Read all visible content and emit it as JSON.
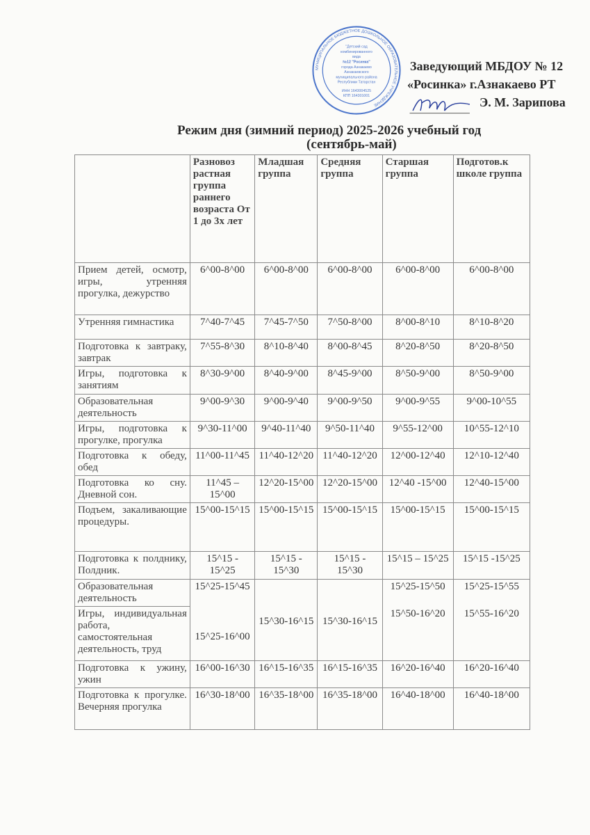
{
  "approval": {
    "line1": "Заведующий МБДОУ № 12",
    "line2": "«Росинка»  г.Азнакаево РТ",
    "line3": "Э. М. Зарипова"
  },
  "stamp": {
    "outer_text": "МУНИЦИПАЛЬНОЕ БЮДЖЕТНОЕ ДОШКОЛЬНОЕ ОБРАЗОВАТЕЛЬНОЕ УЧРЕЖДЕНИЕ",
    "inner_lines": [
      "\"Детский сад",
      "комбинированного",
      "вида",
      "№12 \"Росинка\"",
      "города Азнакаево",
      "Азнакаевского",
      "муниципального района",
      "Республики Татарстан",
      "ИНН 1643004525",
      "КПП 164301001"
    ],
    "color": "#2f5fc4"
  },
  "title": {
    "line1": "Режим дня (зимний период) 2025-2026 учебный год",
    "line2": "(сентябрь-май)"
  },
  "table": {
    "headers": [
      "",
      "Разновоз растная группа раннего возраста От 1 до 3х лет",
      "Младшая группа",
      "Средняя группа",
      "Старшая группа",
      "Подготов.к школе группа"
    ],
    "rows": [
      {
        "label": "Прием детей, осмотр, игры, утренняя прогулка, дежурство",
        "values": [
          "6^00-8^00",
          "6^00-8^00",
          "6^00-8^00",
          "6^00-8^00",
          "6^00-8^00"
        ]
      },
      {
        "label": "Утренняя гимнастика",
        "values": [
          "7^40-7^45",
          "7^45-7^50",
          "7^50-8^00",
          "8^00-8^10",
          "8^10-8^20"
        ]
      },
      {
        "label": "Подготовка к завтраку, завтрак",
        "values": [
          "7^55-8^30",
          "8^10-8^40",
          "8^00-8^45",
          "8^20-8^50",
          "8^20-8^50"
        ]
      },
      {
        "label": "Игры, подготовка к занятиям",
        "values": [
          "8^30-9^00",
          "8^40-9^00",
          "8^45-9^00",
          "8^50-9^00",
          "8^50-9^00"
        ]
      },
      {
        "label": "Образовательная деятельность",
        "values": [
          "9^00-9^30",
          "9^00-9^40",
          "9^00-9^50",
          "9^00-9^55",
          "9^00-10^55"
        ]
      },
      {
        "label": "Игры, подготовка к прогулке, прогулка",
        "values": [
          "9^30-11^00",
          "9^40-11^40",
          "9^50-11^40",
          "9^55-12^00",
          "10^55-12^10"
        ]
      },
      {
        "label": "Подготовка к обеду, обед",
        "values": [
          "11^00-11^45",
          "11^40-12^20",
          "11^40-12^20",
          "12^00-12^40",
          "12^10-12^40"
        ]
      },
      {
        "label": "Подготовка ко сну. Дневной сон.",
        "values": [
          "11^45 – 15^00",
          "12^20-15^00",
          "12^20-15^00",
          "12^40 -15^00",
          "12^40-15^00"
        ]
      },
      {
        "label": "Подъем, закаливающие процедуры.",
        "values": [
          "15^00-15^15",
          "15^00-15^15",
          "15^00-15^15",
          "15^00-15^15",
          "15^00-15^15"
        ]
      },
      {
        "label": "Подготовка к полднику, Полдник.",
        "values": [
          "15^15 - 15^25",
          "15^15 - 15^30",
          "15^15 - 15^30",
          "15^15 – 15^25",
          "15^15 -15^25"
        ]
      }
    ],
    "merged": {
      "labels": [
        "Образовательная деятельность",
        "Игры, индивидуальная работа, самостоятельная деятельность, труд"
      ],
      "col1": [
        "15^25-15^45",
        "15^25-16^00"
      ],
      "col2": "15^30-16^15",
      "col3": "15^30-16^15",
      "col4": [
        "15^25-15^50",
        "15^50-16^20"
      ],
      "col5": [
        "15^25-15^55",
        "15^55-16^20"
      ]
    },
    "rows_after": [
      {
        "label": "Подготовка к ужину, ужин",
        "values": [
          "16^00-16^30",
          "16^15-16^35",
          "16^15-16^35",
          "16^20-16^40",
          "16^20-16^40"
        ]
      },
      {
        "label": "Подготовка к прогулке. Вечерняя прогулка",
        "values": [
          "16^30-18^00",
          "16^35-18^00",
          "16^35-18^00",
          "16^40-18^00",
          "16^40-18^00"
        ]
      }
    ]
  }
}
